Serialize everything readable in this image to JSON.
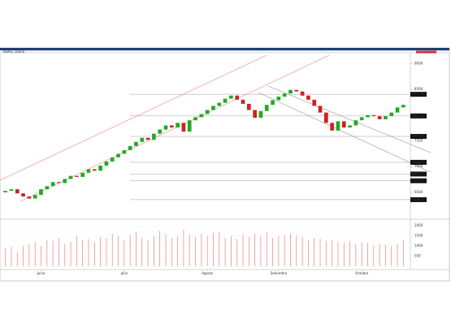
{
  "chart_data": {
    "type": "candlestick",
    "title": "IGBVL, Diario",
    "open": [
      6500,
      6530,
      6560,
      6480,
      6420,
      6380,
      6450,
      6560,
      6620,
      6700,
      6680,
      6760,
      6820,
      6800,
      6880,
      6950,
      6920,
      7020,
      7100,
      7180,
      7250,
      7320,
      7400,
      7480,
      7560,
      7520,
      7640,
      7720,
      7800,
      7760,
      7850,
      7680,
      7900,
      7960,
      8020,
      8100,
      8180,
      8240,
      8320,
      8380,
      8300,
      8220,
      8100,
      7950,
      8080,
      8200,
      8290,
      8360,
      8420,
      8490,
      8460,
      8380,
      8300,
      8180,
      8050,
      7850,
      7700,
      7880,
      7760,
      7800,
      7900,
      7960,
      8000,
      7980,
      7920,
      7980,
      8050,
      8150
    ],
    "close": [
      6530,
      6560,
      6480,
      6420,
      6380,
      6450,
      6560,
      6620,
      6700,
      6680,
      6760,
      6820,
      6800,
      6880,
      6950,
      6920,
      7020,
      7100,
      7180,
      7250,
      7320,
      7400,
      7480,
      7560,
      7520,
      7640,
      7720,
      7800,
      7760,
      7850,
      7680,
      7900,
      7960,
      8020,
      8100,
      8180,
      8240,
      8320,
      8380,
      8300,
      8220,
      8100,
      7950,
      8080,
      8200,
      8290,
      8360,
      8420,
      8490,
      8460,
      8380,
      8300,
      8180,
      8050,
      7850,
      7700,
      7880,
      7760,
      7800,
      7900,
      7960,
      8000,
      7980,
      7920,
      7980,
      8050,
      8150,
      8200
    ],
    "volume": [
      900,
      950,
      700,
      1000,
      1100,
      1200,
      1000,
      1300,
      1250,
      1400,
      1100,
      1200,
      1500,
      1300,
      1350,
      1200,
      1450,
      1400,
      1600,
      1500,
      1300,
      1550,
      1700,
      1400,
      1300,
      1500,
      1750,
      1600,
      1400,
      1500,
      1800,
      1550,
      1450,
      1600,
      1500,
      1650,
      1700,
      1400,
      1500,
      1350,
      1550,
      1450,
      1600,
      1500,
      1700,
      1400,
      1500,
      1550,
      1600,
      1500,
      1450,
      1300,
      1400,
      1350,
      1250,
      1300,
      1200,
      1150,
      1250,
      1100,
      1200,
      1150,
      1000,
      1100,
      1050,
      1000,
      1100,
      1300
    ],
    "months": [
      {
        "index": 6,
        "label": "Junio"
      },
      {
        "index": 20,
        "label": "Julio"
      },
      {
        "index": 34,
        "label": "Agosto"
      },
      {
        "index": 46,
        "label": "Setiembre"
      },
      {
        "index": 60,
        "label": "Octubre"
      }
    ],
    "ylim": [
      6010,
      9180
    ],
    "yticks": [
      6500,
      7000,
      7500,
      8000,
      8500,
      9000
    ],
    "levels": [
      8404.85,
      7984.03,
      7587.49,
      7083.77,
      6855.57,
      6725.57,
      6358.13
    ],
    "vlim": [
      0,
      2000
    ],
    "vticks": [
      500,
      1000,
      1500,
      2000
    ],
    "up_color": "#22aa22",
    "down_color": "#cc2222",
    "volume_color": "#e88080"
  }
}
